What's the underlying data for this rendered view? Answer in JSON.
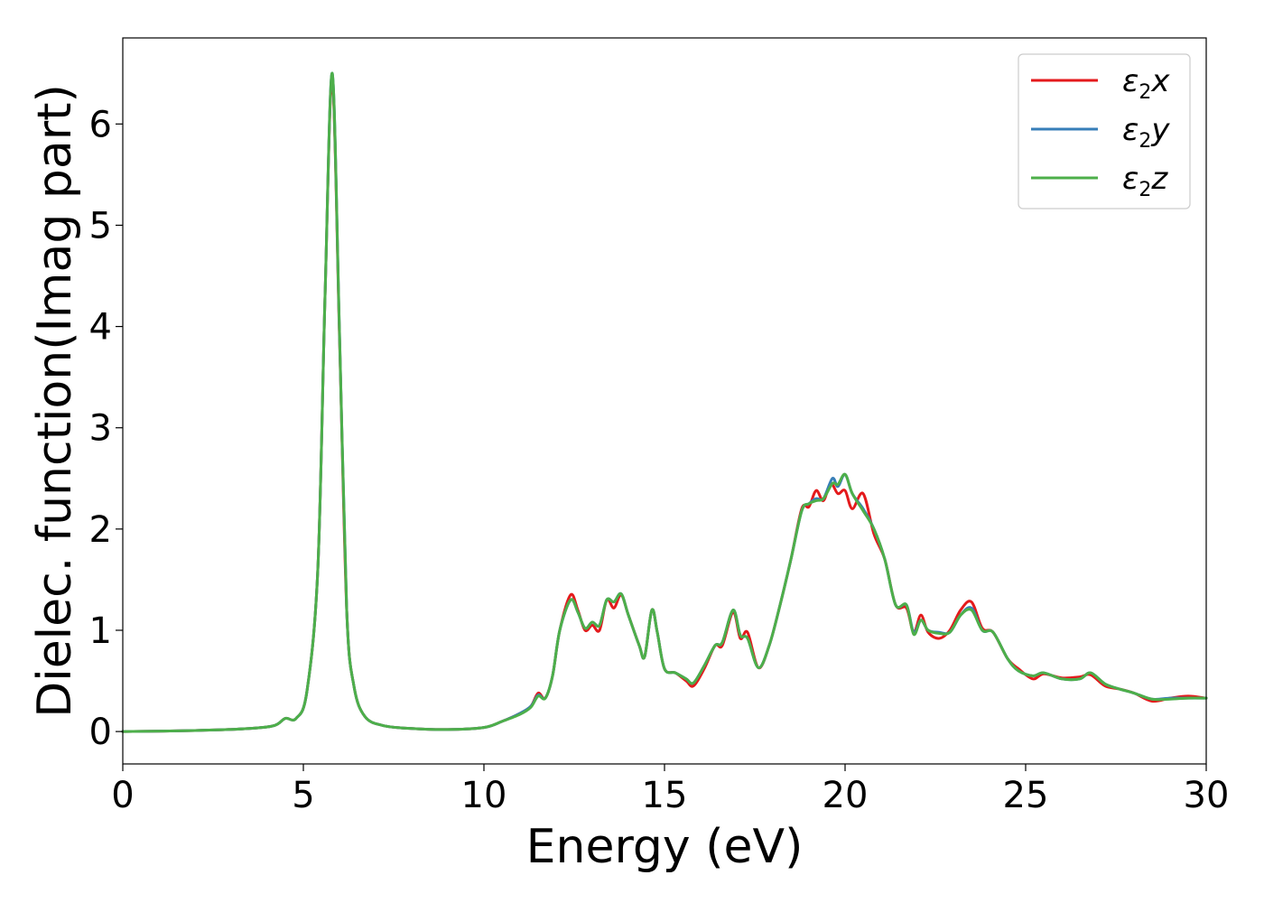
{
  "chart_data": {
    "type": "line",
    "xlabel": "Energy (eV)",
    "ylabel": "Dielec. function(Imag part)",
    "xlim": [
      0,
      30
    ],
    "ylim": [
      -0.32,
      6.85
    ],
    "xticks": [
      0,
      5,
      10,
      15,
      20,
      25,
      30
    ],
    "yticks": [
      0,
      1,
      2,
      3,
      4,
      5,
      6
    ],
    "grid": false,
    "legend_position": "top-right",
    "series": [
      {
        "name": "ε2x",
        "legend": {
          "base": "ε",
          "sub": "2",
          "var": "x"
        },
        "color": "#e41a1c",
        "points": [
          [
            0,
            0.0
          ],
          [
            2,
            0.01
          ],
          [
            3.5,
            0.03
          ],
          [
            4.2,
            0.06
          ],
          [
            4.5,
            0.13
          ],
          [
            4.8,
            0.13
          ],
          [
            5.1,
            0.4
          ],
          [
            5.4,
            1.6
          ],
          [
            5.6,
            4.3
          ],
          [
            5.8,
            6.45
          ],
          [
            6.0,
            3.9
          ],
          [
            6.2,
            1.2
          ],
          [
            6.4,
            0.45
          ],
          [
            6.7,
            0.15
          ],
          [
            7.2,
            0.06
          ],
          [
            8.0,
            0.03
          ],
          [
            9.0,
            0.02
          ],
          [
            10.0,
            0.04
          ],
          [
            10.5,
            0.1
          ],
          [
            11.0,
            0.18
          ],
          [
            11.3,
            0.25
          ],
          [
            11.5,
            0.38
          ],
          [
            11.7,
            0.33
          ],
          [
            11.9,
            0.55
          ],
          [
            12.1,
            1.0
          ],
          [
            12.4,
            1.35
          ],
          [
            12.6,
            1.2
          ],
          [
            12.8,
            1.0
          ],
          [
            13.0,
            1.05
          ],
          [
            13.2,
            1.0
          ],
          [
            13.4,
            1.3
          ],
          [
            13.6,
            1.22
          ],
          [
            13.8,
            1.35
          ],
          [
            14.0,
            1.15
          ],
          [
            14.3,
            0.85
          ],
          [
            14.45,
            0.74
          ],
          [
            14.65,
            1.2
          ],
          [
            14.8,
            0.98
          ],
          [
            15.0,
            0.62
          ],
          [
            15.3,
            0.58
          ],
          [
            15.6,
            0.5
          ],
          [
            15.8,
            0.45
          ],
          [
            16.1,
            0.62
          ],
          [
            16.4,
            0.85
          ],
          [
            16.6,
            0.85
          ],
          [
            16.9,
            1.18
          ],
          [
            17.1,
            0.92
          ],
          [
            17.3,
            0.98
          ],
          [
            17.6,
            0.63
          ],
          [
            17.9,
            0.85
          ],
          [
            18.2,
            1.25
          ],
          [
            18.5,
            1.7
          ],
          [
            18.8,
            2.2
          ],
          [
            19.0,
            2.22
          ],
          [
            19.2,
            2.38
          ],
          [
            19.4,
            2.28
          ],
          [
            19.6,
            2.45
          ],
          [
            19.8,
            2.35
          ],
          [
            20.0,
            2.38
          ],
          [
            20.2,
            2.2
          ],
          [
            20.5,
            2.35
          ],
          [
            20.8,
            1.95
          ],
          [
            21.1,
            1.7
          ],
          [
            21.4,
            1.25
          ],
          [
            21.7,
            1.22
          ],
          [
            21.9,
            0.98
          ],
          [
            22.1,
            1.15
          ],
          [
            22.3,
            0.98
          ],
          [
            22.6,
            0.92
          ],
          [
            22.9,
            1.0
          ],
          [
            23.2,
            1.2
          ],
          [
            23.5,
            1.28
          ],
          [
            23.8,
            1.02
          ],
          [
            24.1,
            0.98
          ],
          [
            24.5,
            0.72
          ],
          [
            24.8,
            0.62
          ],
          [
            25.2,
            0.52
          ],
          [
            25.5,
            0.57
          ],
          [
            26.0,
            0.53
          ],
          [
            26.5,
            0.54
          ],
          [
            26.8,
            0.56
          ],
          [
            27.2,
            0.45
          ],
          [
            27.6,
            0.42
          ],
          [
            28.0,
            0.38
          ],
          [
            28.5,
            0.3
          ],
          [
            29.0,
            0.33
          ],
          [
            29.5,
            0.35
          ],
          [
            30.0,
            0.33
          ]
        ]
      },
      {
        "name": "ε2y",
        "legend": {
          "base": "ε",
          "sub": "2",
          "var": "y"
        },
        "color": "#377eb8",
        "points": [
          [
            0,
            0.0
          ],
          [
            2,
            0.01
          ],
          [
            3.5,
            0.03
          ],
          [
            4.2,
            0.06
          ],
          [
            4.5,
            0.13
          ],
          [
            4.8,
            0.13
          ],
          [
            5.1,
            0.4
          ],
          [
            5.4,
            1.6
          ],
          [
            5.6,
            4.3
          ],
          [
            5.8,
            6.5
          ],
          [
            6.0,
            3.95
          ],
          [
            6.2,
            1.2
          ],
          [
            6.4,
            0.45
          ],
          [
            6.7,
            0.15
          ],
          [
            7.2,
            0.06
          ],
          [
            8.0,
            0.03
          ],
          [
            9.0,
            0.02
          ],
          [
            10.0,
            0.04
          ],
          [
            10.5,
            0.1
          ],
          [
            11.0,
            0.18
          ],
          [
            11.3,
            0.25
          ],
          [
            11.5,
            0.36
          ],
          [
            11.7,
            0.33
          ],
          [
            11.9,
            0.55
          ],
          [
            12.1,
            1.0
          ],
          [
            12.4,
            1.3
          ],
          [
            12.6,
            1.18
          ],
          [
            12.8,
            1.02
          ],
          [
            13.0,
            1.08
          ],
          [
            13.2,
            1.05
          ],
          [
            13.4,
            1.3
          ],
          [
            13.6,
            1.28
          ],
          [
            13.8,
            1.36
          ],
          [
            14.0,
            1.15
          ],
          [
            14.3,
            0.85
          ],
          [
            14.45,
            0.74
          ],
          [
            14.65,
            1.2
          ],
          [
            14.8,
            0.98
          ],
          [
            15.0,
            0.62
          ],
          [
            15.3,
            0.58
          ],
          [
            15.6,
            0.52
          ],
          [
            15.8,
            0.48
          ],
          [
            16.1,
            0.65
          ],
          [
            16.4,
            0.85
          ],
          [
            16.6,
            0.88
          ],
          [
            16.9,
            1.2
          ],
          [
            17.1,
            0.95
          ],
          [
            17.3,
            0.92
          ],
          [
            17.6,
            0.63
          ],
          [
            17.9,
            0.85
          ],
          [
            18.2,
            1.25
          ],
          [
            18.5,
            1.7
          ],
          [
            18.8,
            2.18
          ],
          [
            19.0,
            2.25
          ],
          [
            19.2,
            2.3
          ],
          [
            19.4,
            2.3
          ],
          [
            19.65,
            2.5
          ],
          [
            19.8,
            2.42
          ],
          [
            20.0,
            2.54
          ],
          [
            20.2,
            2.35
          ],
          [
            20.5,
            2.2
          ],
          [
            20.8,
            2.0
          ],
          [
            21.1,
            1.7
          ],
          [
            21.4,
            1.25
          ],
          [
            21.7,
            1.25
          ],
          [
            21.9,
            0.98
          ],
          [
            22.1,
            1.1
          ],
          [
            22.3,
            1.0
          ],
          [
            22.6,
            0.98
          ],
          [
            22.9,
            0.98
          ],
          [
            23.2,
            1.15
          ],
          [
            23.5,
            1.22
          ],
          [
            23.8,
            1.0
          ],
          [
            24.1,
            0.98
          ],
          [
            24.5,
            0.72
          ],
          [
            24.8,
            0.6
          ],
          [
            25.2,
            0.55
          ],
          [
            25.5,
            0.58
          ],
          [
            26.0,
            0.52
          ],
          [
            26.5,
            0.52
          ],
          [
            26.8,
            0.58
          ],
          [
            27.2,
            0.47
          ],
          [
            27.6,
            0.42
          ],
          [
            28.0,
            0.38
          ],
          [
            28.5,
            0.32
          ],
          [
            29.0,
            0.33
          ],
          [
            29.5,
            0.33
          ],
          [
            30.0,
            0.33
          ]
        ]
      },
      {
        "name": "ε2z",
        "legend": {
          "base": "ε",
          "sub": "2",
          "var": "z"
        },
        "color": "#4daf4a",
        "points": [
          [
            0,
            0.0
          ],
          [
            2,
            0.01
          ],
          [
            3.5,
            0.03
          ],
          [
            4.2,
            0.06
          ],
          [
            4.5,
            0.13
          ],
          [
            4.8,
            0.13
          ],
          [
            5.1,
            0.4
          ],
          [
            5.4,
            1.6
          ],
          [
            5.6,
            4.3
          ],
          [
            5.8,
            6.5
          ],
          [
            6.0,
            3.95
          ],
          [
            6.2,
            1.2
          ],
          [
            6.4,
            0.45
          ],
          [
            6.7,
            0.15
          ],
          [
            7.2,
            0.06
          ],
          [
            8.0,
            0.03
          ],
          [
            9.0,
            0.02
          ],
          [
            10.0,
            0.04
          ],
          [
            10.5,
            0.1
          ],
          [
            11.0,
            0.17
          ],
          [
            11.3,
            0.24
          ],
          [
            11.5,
            0.35
          ],
          [
            11.7,
            0.33
          ],
          [
            11.9,
            0.55
          ],
          [
            12.1,
            1.0
          ],
          [
            12.4,
            1.3
          ],
          [
            12.6,
            1.18
          ],
          [
            12.8,
            1.02
          ],
          [
            13.0,
            1.08
          ],
          [
            13.2,
            1.05
          ],
          [
            13.4,
            1.3
          ],
          [
            13.6,
            1.28
          ],
          [
            13.8,
            1.36
          ],
          [
            14.0,
            1.15
          ],
          [
            14.3,
            0.85
          ],
          [
            14.45,
            0.74
          ],
          [
            14.65,
            1.2
          ],
          [
            14.8,
            0.98
          ],
          [
            15.0,
            0.62
          ],
          [
            15.3,
            0.58
          ],
          [
            15.6,
            0.52
          ],
          [
            15.8,
            0.48
          ],
          [
            16.1,
            0.65
          ],
          [
            16.4,
            0.85
          ],
          [
            16.6,
            0.88
          ],
          [
            16.9,
            1.2
          ],
          [
            17.1,
            0.95
          ],
          [
            17.3,
            0.92
          ],
          [
            17.6,
            0.63
          ],
          [
            17.9,
            0.85
          ],
          [
            18.2,
            1.25
          ],
          [
            18.5,
            1.7
          ],
          [
            18.8,
            2.18
          ],
          [
            19.0,
            2.25
          ],
          [
            19.2,
            2.28
          ],
          [
            19.4,
            2.3
          ],
          [
            19.65,
            2.45
          ],
          [
            19.8,
            2.44
          ],
          [
            20.0,
            2.54
          ],
          [
            20.2,
            2.35
          ],
          [
            20.5,
            2.18
          ],
          [
            20.8,
            2.0
          ],
          [
            21.1,
            1.7
          ],
          [
            21.4,
            1.25
          ],
          [
            21.7,
            1.25
          ],
          [
            21.9,
            0.96
          ],
          [
            22.1,
            1.1
          ],
          [
            22.3,
            1.0
          ],
          [
            22.6,
            0.97
          ],
          [
            22.9,
            0.98
          ],
          [
            23.2,
            1.15
          ],
          [
            23.5,
            1.2
          ],
          [
            23.8,
            1.0
          ],
          [
            24.1,
            0.98
          ],
          [
            24.5,
            0.72
          ],
          [
            24.8,
            0.6
          ],
          [
            25.2,
            0.55
          ],
          [
            25.5,
            0.58
          ],
          [
            26.0,
            0.52
          ],
          [
            26.5,
            0.52
          ],
          [
            26.8,
            0.58
          ],
          [
            27.2,
            0.47
          ],
          [
            27.6,
            0.42
          ],
          [
            28.0,
            0.38
          ],
          [
            28.5,
            0.32
          ],
          [
            29.0,
            0.32
          ],
          [
            29.5,
            0.33
          ],
          [
            30.0,
            0.33
          ]
        ]
      }
    ]
  }
}
